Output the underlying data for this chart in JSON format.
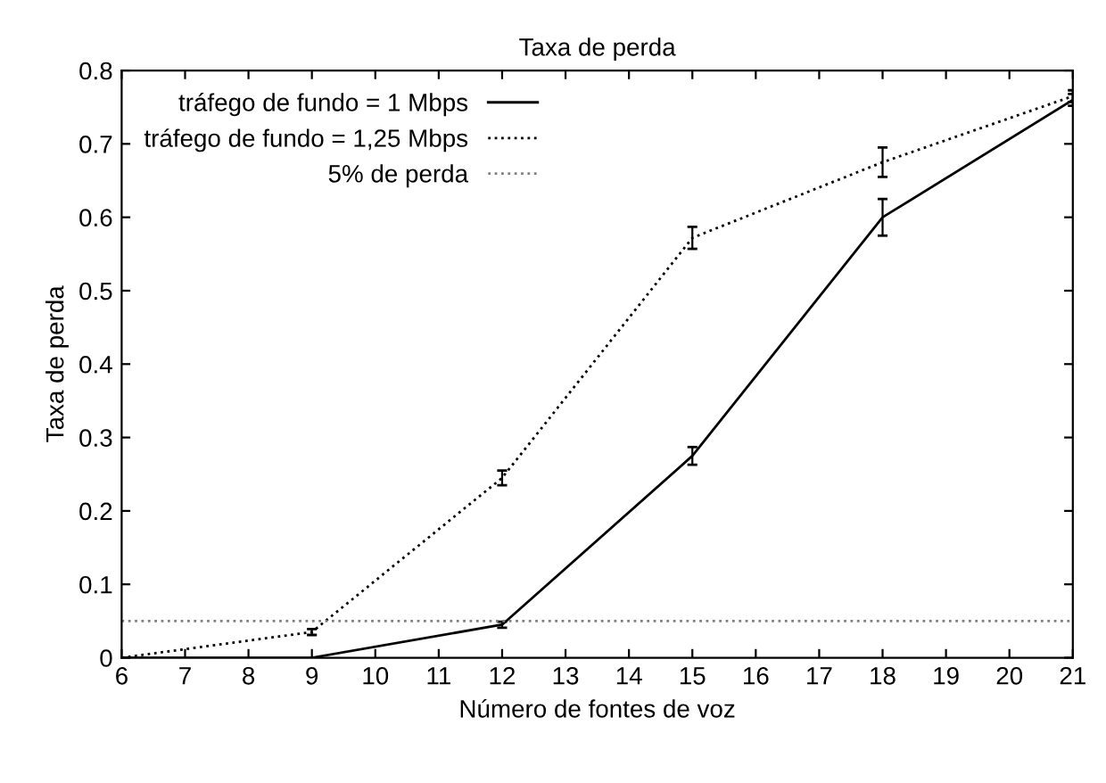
{
  "chart_data": {
    "type": "line",
    "title": "Taxa de perda",
    "xlabel": "Número de fontes de voz",
    "ylabel": "Taxa de perda",
    "x": [
      6,
      9,
      12,
      15,
      18,
      21
    ],
    "series": [
      {
        "name": "tráfego de fundo = 1 Mbps",
        "color": "#000000",
        "line_style": "solid",
        "values": [
          0,
          0,
          0.045,
          0.275,
          0.6,
          0.76
        ],
        "errors": [
          null,
          null,
          0.004,
          0.012,
          0.025,
          0.008
        ]
      },
      {
        "name": "tráfego de fundo = 1,25 Mbps",
        "color": "#000000",
        "line_style": "dotted",
        "values": [
          0,
          0.035,
          0.245,
          0.572,
          0.675,
          0.765
        ],
        "errors": [
          null,
          0.004,
          0.01,
          0.015,
          0.02,
          0.008
        ]
      }
    ],
    "ref_lines": [
      {
        "axis": "y",
        "value": 0.05,
        "label": "5% de perda",
        "color": "#808080",
        "line_style": "dotted"
      }
    ],
    "xlim": [
      6,
      21
    ],
    "xticks": [
      6,
      7,
      8,
      9,
      10,
      11,
      12,
      13,
      14,
      15,
      16,
      17,
      18,
      19,
      20,
      21
    ],
    "ylim": [
      0,
      0.8
    ],
    "yticks": [
      0,
      0.1,
      0.2,
      0.3,
      0.4,
      0.5,
      0.6,
      0.7,
      0.8
    ],
    "grid": false,
    "legend": "top left",
    "marker": "none"
  }
}
